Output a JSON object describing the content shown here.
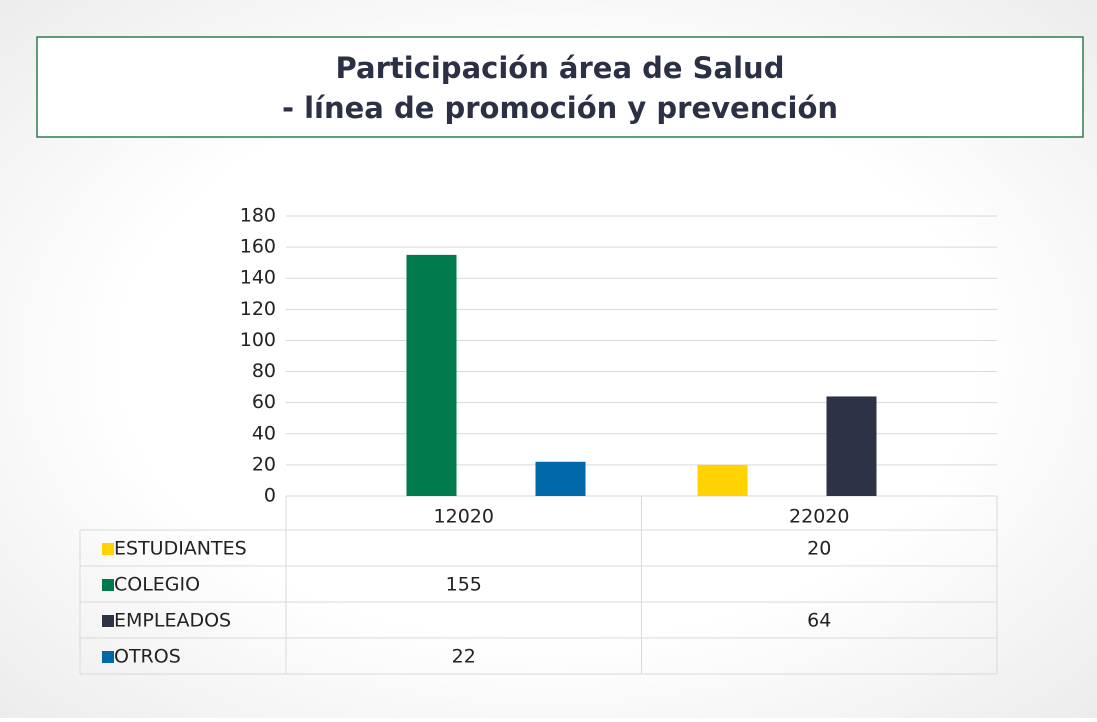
{
  "chart_data": {
    "type": "bar",
    "title": [
      "Participación área de Salud",
      "- línea de promoción y prevención"
    ],
    "categories": [
      "12020",
      "22020"
    ],
    "series": [
      {
        "name": "ESTUDIANTES",
        "color": "#ffd200",
        "values": [
          null,
          20
        ]
      },
      {
        "name": "COLEGIO",
        "color": "#007a4d",
        "values": [
          155,
          null
        ]
      },
      {
        "name": "EMPLEADOS",
        "color": "#2e3247",
        "values": [
          null,
          64
        ]
      },
      {
        "name": "OTROS",
        "color": "#0068a8",
        "values": [
          22,
          null
        ]
      }
    ],
    "ylim": [
      0,
      180
    ],
    "yticks": [
      0,
      20,
      40,
      60,
      80,
      100,
      120,
      140,
      160,
      180
    ],
    "grid": true,
    "data_table": true
  }
}
